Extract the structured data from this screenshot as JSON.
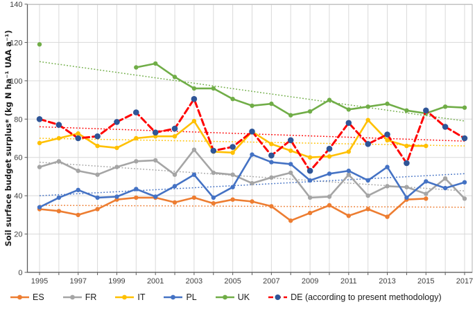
{
  "chart_data": {
    "type": "line",
    "title": "",
    "ylabel": "Soil surface budget surplus* (kg N ha⁻¹ UAA a⁻¹)",
    "xlabel": "",
    "ylim": [
      0,
      140
    ],
    "y_ticks": [
      0,
      20,
      40,
      60,
      80,
      100,
      120,
      140
    ],
    "x_range": [
      1995,
      2017
    ],
    "x_tick_labels": [
      1995,
      1997,
      1999,
      2001,
      2003,
      2005,
      2007,
      2009,
      2011,
      2013,
      2015,
      2017
    ],
    "grid": "vertical every year, horizontal every 20; light gray",
    "legend_position": "bottom",
    "colors": {
      "gridline": "#d9d9d9",
      "border": "#bfbfbf",
      "axis": "#595959",
      "tick_text": "#404040",
      "de_marker": "#2f5597"
    },
    "series": [
      {
        "id": "ES",
        "label": "ES",
        "color": "#ED7D31",
        "line": "solid",
        "values": {
          "1995": 33,
          "1996": 32,
          "1997": 30,
          "1998": 33,
          "1999": 38,
          "2000": 39,
          "2001": 39,
          "2002": 36.5,
          "2003": 39,
          "2004": 36,
          "2005": 38,
          "2006": 37,
          "2007": 34.5,
          "2008": 27,
          "2009": 31,
          "2010": 35,
          "2011": 29.5,
          "2012": 33,
          "2013": 29,
          "2014": 38,
          "2015": 38.5
        },
        "trend": {
          "start": 35,
          "end": 34
        }
      },
      {
        "id": "FR",
        "label": "FR",
        "color": "#A5A5A5",
        "line": "solid",
        "values": {
          "1995": 55,
          "1996": 58,
          "1997": 53,
          "1998": 51,
          "1999": 55,
          "2000": 58,
          "2001": 58.5,
          "2002": 51,
          "2003": 64,
          "2004": 52,
          "2005": 51,
          "2006": 46.5,
          "2007": 49.5,
          "2008": 52,
          "2009": 39,
          "2010": 39.5,
          "2011": 51,
          "2012": 40,
          "2013": 45,
          "2014": 44.5,
          "2015": 41,
          "2016": 49,
          "2017": 38.5
        },
        "trend": {
          "start": 57.5,
          "end": 42.5
        }
      },
      {
        "id": "IT",
        "label": "IT",
        "color": "#FFC000",
        "line": "solid",
        "values": {
          "1995": 67.5,
          "1996": 70,
          "1997": 72.5,
          "1998": 66,
          "1999": 65,
          "2000": 70,
          "2001": 71,
          "2002": 71,
          "2003": 79,
          "2004": 63,
          "2005": 62.5,
          "2006": 73.5,
          "2007": 67,
          "2008": 63.5,
          "2009": 60,
          "2010": 60.5,
          "2011": 63,
          "2012": 79.5,
          "2013": 69,
          "2014": 66,
          "2015": 66
        },
        "trend": {
          "start": 70,
          "end": 66
        }
      },
      {
        "id": "PL",
        "label": "PL",
        "color": "#4472C4",
        "line": "solid",
        "values": {
          "1995": 34,
          "1996": 39,
          "1997": 43,
          "1998": 39,
          "1999": 39.5,
          "2000": 43.5,
          "2001": 39.5,
          "2002": 45,
          "2003": 51,
          "2004": 39,
          "2005": 44.5,
          "2006": 61.5,
          "2007": 57.5,
          "2008": 56.5,
          "2009": 48,
          "2010": 51.5,
          "2011": 53,
          "2012": 48,
          "2013": 55,
          "2014": 39,
          "2015": 47.5,
          "2016": 44,
          "2017": 47
        },
        "trend": {
          "start": 40,
          "end": 51.5
        }
      },
      {
        "id": "UK",
        "label": "UK",
        "color": "#70AD47",
        "line": "solid",
        "values": {
          "1995": 119,
          "2000": 107,
          "2001": 109,
          "2002": 102,
          "2003": 96,
          "2004": 96,
          "2005": 90.5,
          "2006": 87,
          "2007": 88,
          "2008": 82,
          "2009": 84,
          "2010": 90,
          "2011": 85,
          "2012": 86.5,
          "2013": 88,
          "2014": 84.5,
          "2015": 83,
          "2016": 86.5,
          "2017": 86
        },
        "trend": {
          "start": 110,
          "end": 79
        }
      },
      {
        "id": "DE",
        "label": "DE (according to present methodology)",
        "color": "#FF0000",
        "marker_color": "#2f5597",
        "line": "dashed",
        "values": {
          "1995": 80,
          "1996": 77,
          "1997": 70,
          "1998": 71,
          "1999": 78.5,
          "2000": 83.5,
          "2001": 73,
          "2002": 75,
          "2003": 90.5,
          "2004": 63.5,
          "2005": 65.5,
          "2006": 73.5,
          "2007": 61,
          "2008": 69,
          "2009": 53,
          "2010": 64.5,
          "2011": 78,
          "2012": 67,
          "2013": 72,
          "2014": 57,
          "2015": 84.5,
          "2016": 76,
          "2017": 70
        },
        "trend": {
          "start": 76,
          "end": 68.5
        }
      }
    ]
  }
}
